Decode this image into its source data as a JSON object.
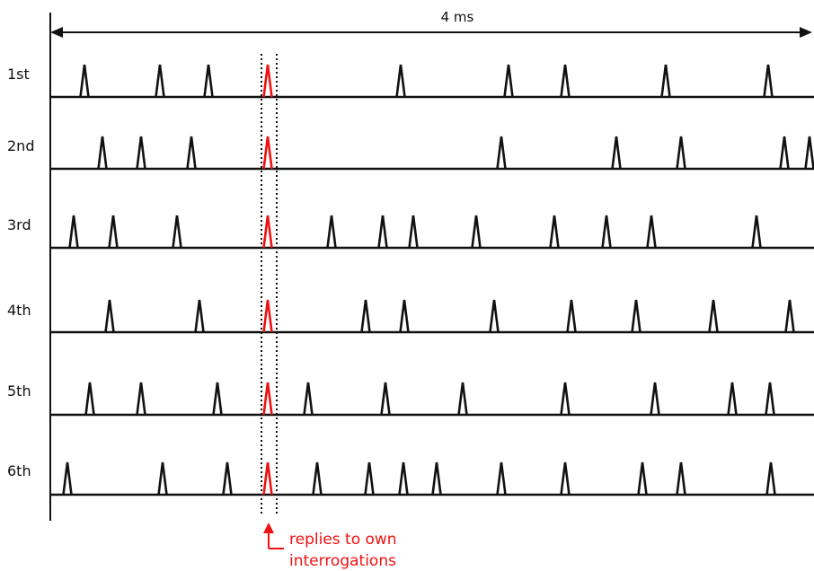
{
  "duration_label": "4 ms",
  "annotation": {
    "line1": "replies to own",
    "line2": "interrogations"
  },
  "colors": {
    "pulse": "#111111",
    "own_reply": "#ee1111",
    "axis": "#111111",
    "annotation": "#ee1111"
  },
  "rows": [
    {
      "label": "1st",
      "pulses": [
        94,
        178,
        232,
        446,
        566,
        629,
        741,
        855
      ]
    },
    {
      "label": "2nd",
      "pulses": [
        114,
        157,
        213,
        558,
        686,
        758,
        873,
        901
      ]
    },
    {
      "label": "3rd",
      "pulses": [
        82,
        126,
        197,
        369,
        426,
        460,
        530,
        617,
        675,
        725,
        842
      ]
    },
    {
      "label": "4th",
      "pulses": [
        122,
        222,
        407,
        450,
        550,
        636,
        708,
        794,
        879
      ]
    },
    {
      "label": "5th",
      "pulses": [
        100,
        157,
        242,
        343,
        429,
        515,
        629,
        729,
        815,
        857
      ]
    },
    {
      "label": "6th",
      "pulses": [
        75,
        181,
        253,
        353,
        411,
        449,
        486,
        558,
        629,
        715,
        758,
        858
      ]
    }
  ],
  "own_reply_time": 298
}
